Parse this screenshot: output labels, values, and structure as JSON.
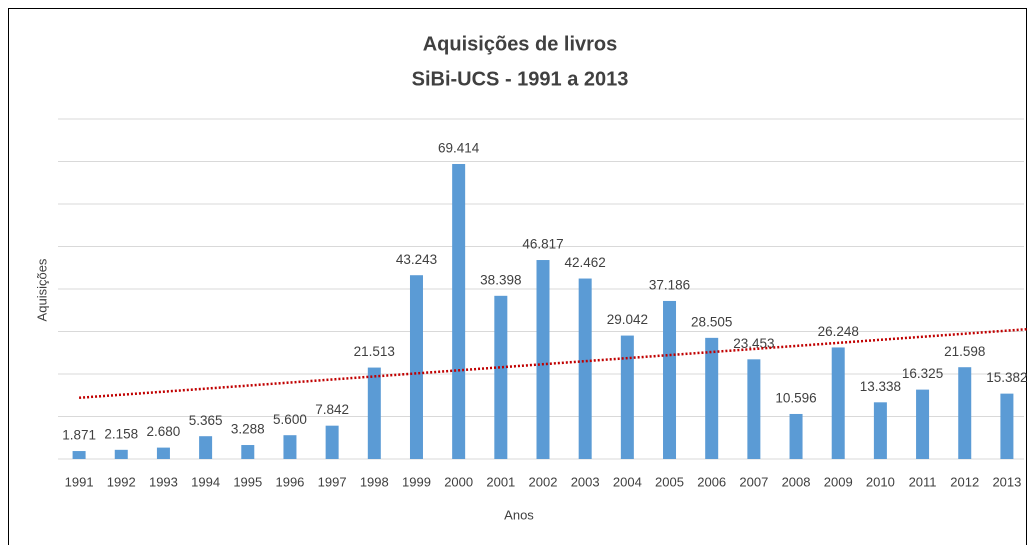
{
  "chart_data": {
    "type": "bar",
    "title": "Aquisições de livros",
    "subtitle": "SiBi-UCS - 1991 a 2013",
    "x_label": "Anos",
    "y_label": "Aquisições",
    "categories": [
      "1991",
      "1992",
      "1993",
      "1994",
      "1995",
      "1996",
      "1997",
      "1998",
      "1999",
      "2000",
      "2001",
      "2002",
      "2003",
      "2004",
      "2005",
      "2006",
      "2007",
      "2008",
      "2009",
      "2010",
      "2011",
      "2012",
      "2013"
    ],
    "values": [
      1871,
      2158,
      2680,
      5365,
      3288,
      5600,
      7842,
      21513,
      43243,
      69414,
      38398,
      46817,
      42462,
      29042,
      37186,
      28505,
      23453,
      10596,
      26248,
      13338,
      16325,
      21598,
      15382
    ],
    "value_labels": [
      "1.871",
      "2.158",
      "2.680",
      "5.365",
      "3.288",
      "5.600",
      "7.842",
      "21.513",
      "43.243",
      "69.414",
      "38.398",
      "46.817",
      "42.462",
      "29.042",
      "37.186",
      "28.505",
      "23.453",
      "10.596",
      "26.248",
      "13.338",
      "16.325",
      "21.598",
      "15.382"
    ],
    "color": "#5b9bd5",
    "ylim": [
      0,
      80000
    ],
    "yticks": [
      0,
      10000,
      20000,
      30000,
      40000,
      50000,
      60000,
      70000,
      80000
    ],
    "grid": true,
    "trendline": {
      "start": 14400,
      "end": 30200,
      "color": "#c00000"
    }
  }
}
